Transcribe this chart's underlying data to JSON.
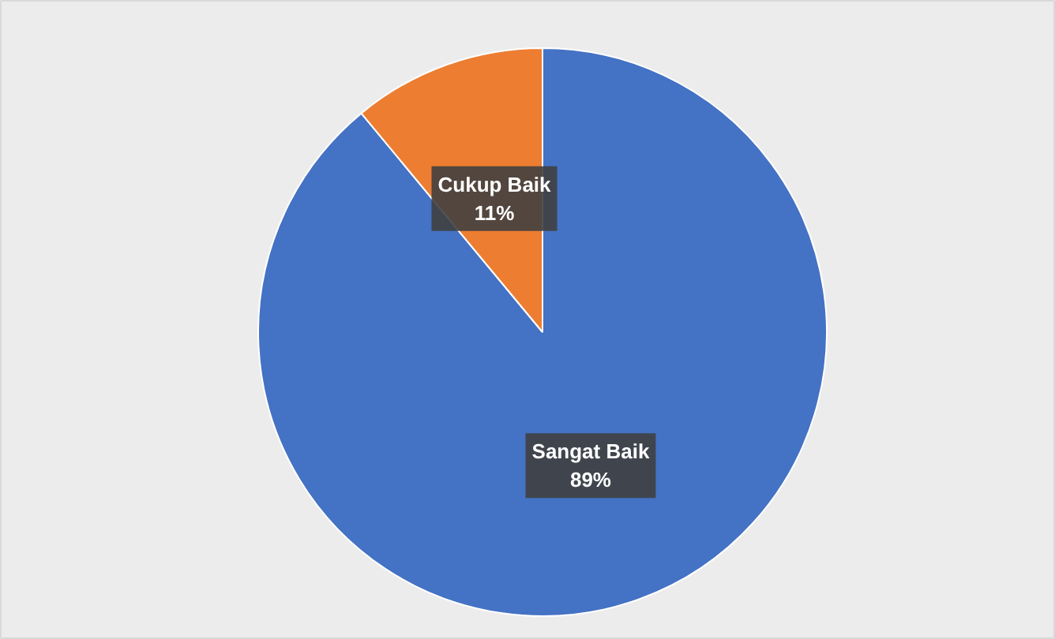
{
  "chart_data": {
    "type": "pie",
    "categories": [
      "Sangat Baik",
      "Cukup Baik"
    ],
    "values": [
      89,
      11
    ],
    "colors": [
      "#4472c4",
      "#ed7d31"
    ],
    "value_labels": [
      "89%",
      "11%"
    ]
  }
}
